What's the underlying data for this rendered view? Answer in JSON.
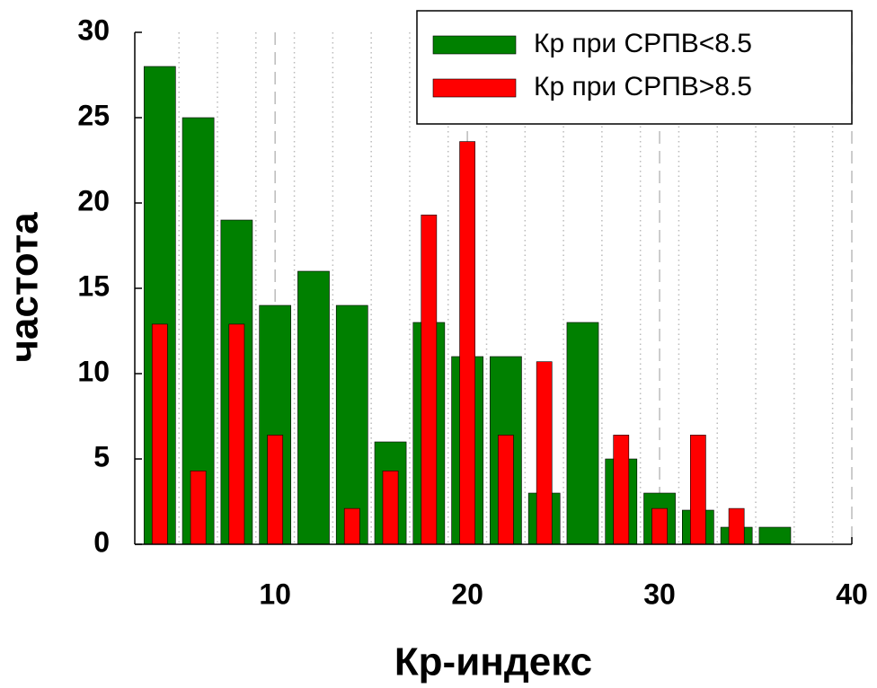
{
  "chart_data": {
    "type": "bar",
    "x": [
      4,
      6,
      8,
      10,
      12,
      14,
      16,
      18,
      20,
      22,
      24,
      26,
      28,
      30,
      32,
      34,
      36
    ],
    "series": [
      {
        "name": "Кр при СРПВ<8.5",
        "color": "#008000",
        "values": [
          28,
          25,
          19,
          14,
          16,
          14,
          6,
          13,
          11,
          11,
          3,
          13,
          5,
          3,
          2,
          1,
          1
        ]
      },
      {
        "name": "Кр при СРПВ>8.5",
        "color": "#ff0000",
        "values": [
          12.9,
          4.3,
          12.9,
          6.4,
          0,
          2.1,
          4.3,
          19.3,
          23.6,
          6.4,
          10.7,
          0,
          6.4,
          2.1,
          6.4,
          2.1,
          0
        ]
      }
    ],
    "xlabel": "Кр-индекс",
    "ylabel": "частота",
    "xlim": [
      2.7,
      40
    ],
    "ylim": [
      0,
      30
    ],
    "xticks": [
      10,
      20,
      30,
      40
    ],
    "yticks": [
      0,
      5,
      10,
      15,
      20,
      25,
      30
    ],
    "x_minor_ticks": [
      5,
      7,
      9,
      11,
      13,
      15,
      17,
      19,
      21,
      23,
      25,
      27,
      29,
      31,
      33,
      35,
      37,
      39
    ],
    "grid": true,
    "legend": "upper right"
  }
}
